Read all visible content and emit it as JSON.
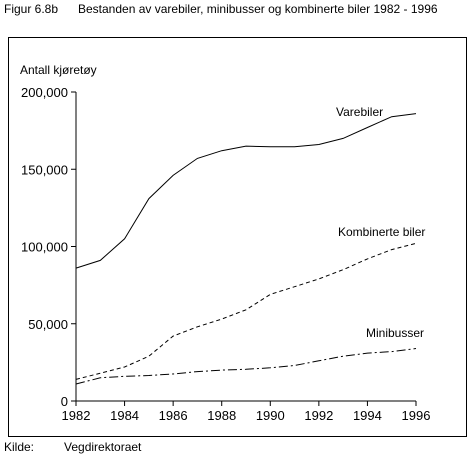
{
  "figure": {
    "number": "Figur 6.8b",
    "title": "Bestanden av varebiler, minibusser og kombinerte biler 1982 - 1996"
  },
  "source": {
    "label": "Kilde:",
    "value": "Vegdirektoraet"
  },
  "chart_data": {
    "type": "line",
    "title": "Bestanden av varebiler, minibusser og kombinerte biler 1982 - 1996",
    "ylabel": "Antall kjøretøy",
    "xlabel": "",
    "xlim": [
      1982,
      1996
    ],
    "ylim": [
      0,
      200000
    ],
    "x_ticks": [
      1982,
      1984,
      1986,
      1988,
      1990,
      1992,
      1994,
      1996
    ],
    "x_tick_labels": [
      "1982",
      "1984",
      "1986",
      "1988",
      "1990",
      "1992",
      "1994",
      "1996"
    ],
    "y_ticks": [
      0,
      50000,
      100000,
      150000,
      200000
    ],
    "y_tick_labels": [
      "0",
      "50,000",
      "100,000",
      "150,000",
      "200,000"
    ],
    "grid": false,
    "x": [
      1982,
      1983,
      1984,
      1985,
      1986,
      1987,
      1988,
      1989,
      1990,
      1991,
      1992,
      1993,
      1994,
      1995,
      1996
    ],
    "series": [
      {
        "name": "Varebiler",
        "style": "solid",
        "values": [
          86000,
          91000,
          105000,
          131000,
          146000,
          157000,
          162000,
          165000,
          164500,
          164500,
          166000,
          170000,
          177000,
          184000,
          186000
        ]
      },
      {
        "name": "Kombinerte biler",
        "style": "dashed",
        "values": [
          14000,
          18000,
          22000,
          29000,
          42000,
          48000,
          53000,
          59000,
          69000,
          74000,
          79000,
          85000,
          92000,
          98000,
          102000
        ]
      },
      {
        "name": "Minibusser",
        "style": "dash-dot",
        "values": [
          11000,
          15000,
          16000,
          16500,
          17500,
          19000,
          20000,
          20500,
          21500,
          23000,
          26000,
          29000,
          31000,
          32000,
          34000
        ]
      }
    ]
  }
}
